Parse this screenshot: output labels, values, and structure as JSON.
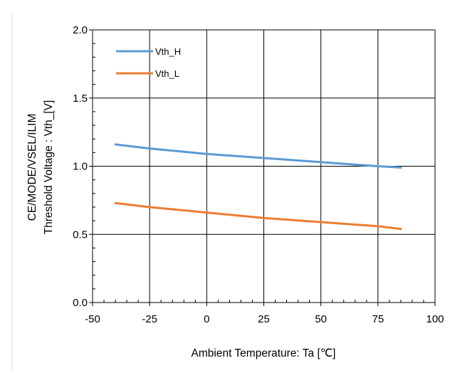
{
  "chart_data": {
    "type": "line",
    "xlabel": "Ambient Temperature: Ta [℃]",
    "ylabel": [
      "CE/MODE/VSEL/ILIM",
      "Threshold Voltage : Vth_[V]"
    ],
    "xlim": [
      -50,
      100
    ],
    "ylim": [
      0.0,
      2.0
    ],
    "x_ticks": [
      -50,
      -25,
      0,
      25,
      50,
      75,
      100
    ],
    "x_tick_labels": [
      "-50",
      "-25",
      "0",
      "25",
      "50",
      "75",
      "100"
    ],
    "y_ticks": [
      0.0,
      0.5,
      1.0,
      1.5,
      2.0
    ],
    "y_tick_labels": [
      "0.0",
      "0.5",
      "1.0",
      "1.5",
      "2.0"
    ],
    "grid": true,
    "legend_position": "top-left",
    "series": [
      {
        "name": "Vth_H",
        "color": "#5b9bd5",
        "x": [
          -40,
          -25,
          0,
          25,
          50,
          75,
          85
        ],
        "y": [
          1.16,
          1.13,
          1.09,
          1.06,
          1.03,
          1.0,
          0.99
        ]
      },
      {
        "name": "Vth_L",
        "color": "#ed7d31",
        "x": [
          -40,
          -25,
          0,
          25,
          50,
          75,
          85
        ],
        "y": [
          0.73,
          0.7,
          0.66,
          0.62,
          0.59,
          0.56,
          0.54
        ]
      }
    ]
  }
}
